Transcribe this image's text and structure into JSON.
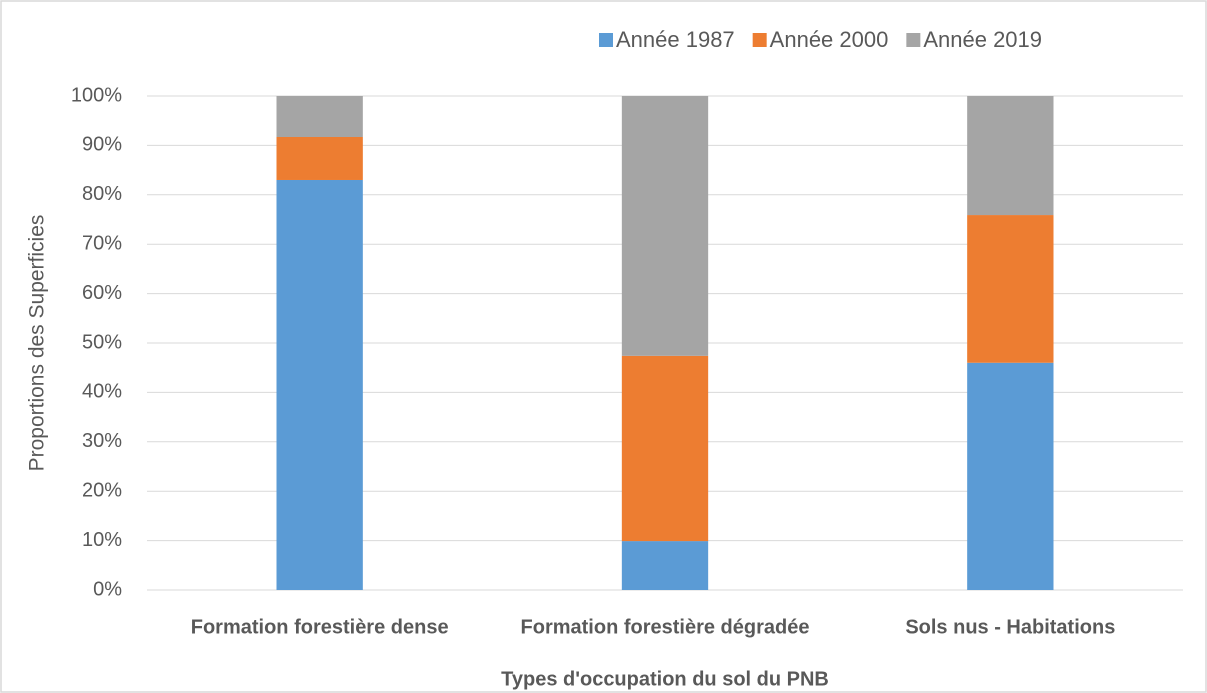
{
  "chart_data": {
    "type": "stacked_bar",
    "y_label": "Proportions des Superficies",
    "x_label": "Types d'occupation du sol du PNB",
    "categories": [
      "Formation forestière dense",
      "Formation forestière dégradée",
      "Sols nus - Habitations"
    ],
    "series": [
      {
        "name": "Année 1987",
        "color": "#5b9bd5",
        "values": [
          83.0,
          9.9,
          46.0
        ]
      },
      {
        "name": "Année 2000",
        "color": "#ed7d31",
        "values": [
          8.7,
          37.5,
          29.9
        ]
      },
      {
        "name": "Année 2019",
        "color": "#a5a5a5",
        "values": [
          8.3,
          52.6,
          24.1
        ]
      }
    ],
    "ylim": [
      0,
      100
    ],
    "yticks": [
      {
        "value": 0,
        "label": "0%"
      },
      {
        "value": 10,
        "label": "10%"
      },
      {
        "value": 20,
        "label": "20%"
      },
      {
        "value": 30,
        "label": "30%"
      },
      {
        "value": 40,
        "label": "40%"
      },
      {
        "value": 50,
        "label": "50%"
      },
      {
        "value": 60,
        "label": "60%"
      },
      {
        "value": 70,
        "label": "70%"
      },
      {
        "value": 80,
        "label": "80%"
      },
      {
        "value": 90,
        "label": "90%"
      },
      {
        "value": 100,
        "label": "100%"
      }
    ],
    "grid": true,
    "legend": "top-right"
  }
}
